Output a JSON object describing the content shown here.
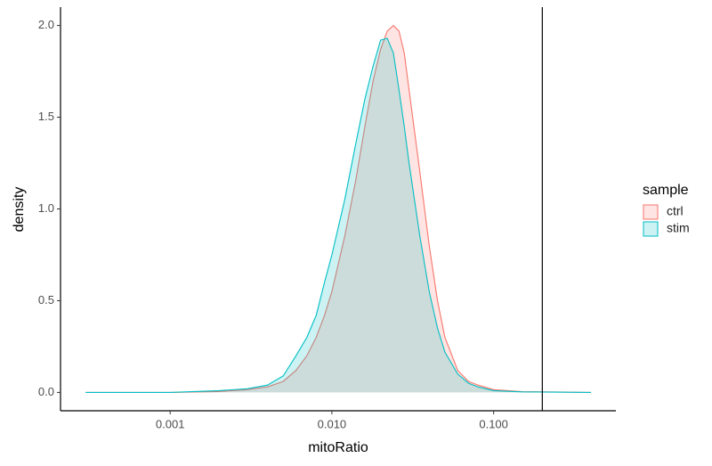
{
  "chart_data": {
    "type": "density",
    "xlabel": "mitoRatio",
    "ylabel": "density",
    "legend_title": "sample",
    "legend_position": "right",
    "xscale": "log",
    "xlim": [
      0.00021,
      0.57
    ],
    "ylim": [
      -0.1,
      2.1
    ],
    "xticks": [
      {
        "value": 0.001,
        "label": "0.001"
      },
      {
        "value": 0.01,
        "label": "0.010"
      },
      {
        "value": 0.1,
        "label": "0.100"
      }
    ],
    "yticks": [
      {
        "value": 0,
        "label": "0.0"
      },
      0.5,
      {
        "value": 1,
        "label": "1.0"
      },
      1.5,
      {
        "value": 2,
        "label": "2.0"
      }
    ],
    "vline": 0.2,
    "fill_opacity": 0.2,
    "x": [
      0.0003,
      0.001,
      0.002,
      0.003,
      0.004,
      0.005,
      0.006,
      0.007,
      0.008,
      0.009,
      0.01,
      0.012,
      0.014,
      0.016,
      0.018,
      0.02,
      0.022,
      0.024,
      0.026,
      0.028,
      0.03,
      0.035,
      0.04,
      0.045,
      0.05,
      0.06,
      0.07,
      0.08,
      0.1,
      0.15,
      0.4
    ],
    "series": [
      {
        "name": "ctrl",
        "color": "#F8766D",
        "values": [
          0,
          0,
          0.005,
          0.015,
          0.03,
          0.06,
          0.12,
          0.2,
          0.3,
          0.42,
          0.55,
          0.85,
          1.15,
          1.45,
          1.7,
          1.87,
          1.97,
          2.0,
          1.97,
          1.85,
          1.65,
          1.2,
          0.8,
          0.5,
          0.3,
          0.12,
          0.06,
          0.04,
          0.015,
          0.004,
          0
        ]
      },
      {
        "name": "stim",
        "color": "#00BFC4",
        "values": [
          0,
          0,
          0.01,
          0.02,
          0.04,
          0.09,
          0.2,
          0.3,
          0.42,
          0.6,
          0.75,
          1.05,
          1.35,
          1.6,
          1.78,
          1.92,
          1.93,
          1.85,
          1.65,
          1.45,
          1.25,
          0.85,
          0.55,
          0.35,
          0.22,
          0.1,
          0.05,
          0.03,
          0.01,
          0.003,
          0
        ]
      }
    ]
  }
}
